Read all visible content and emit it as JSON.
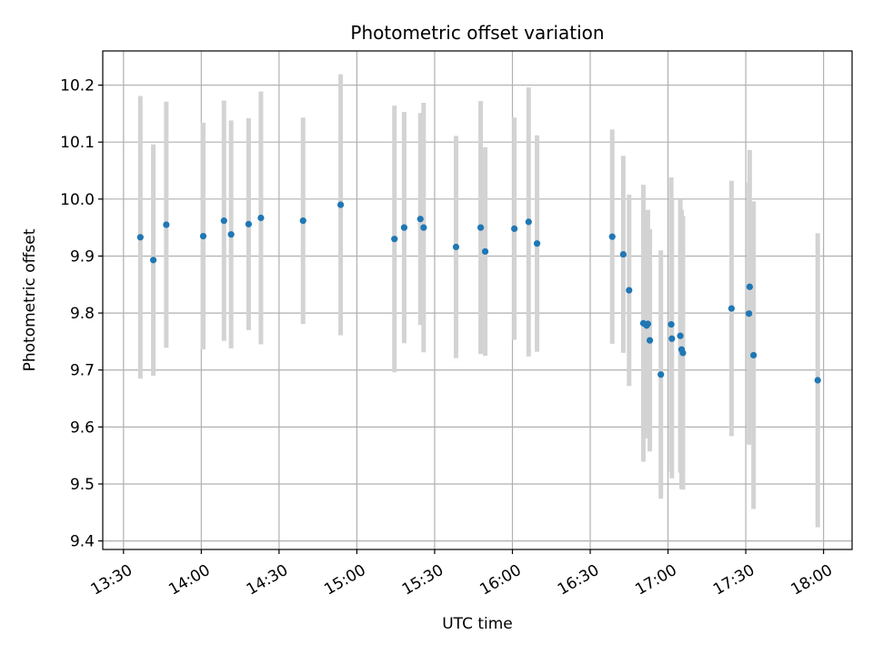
{
  "chart_data": {
    "type": "scatter",
    "title": "Photometric offset variation",
    "xlabel": "UTC time",
    "ylabel": "Photometric offset",
    "x_axis_kind": "time",
    "xlim": [
      "13:22",
      "18:11"
    ],
    "ylim": [
      9.385,
      10.26
    ],
    "grid": true,
    "marker_color": "#1f77b4",
    "errorbar_color": "#d3d3d3",
    "x_ticks": [
      {
        "value": "13:30",
        "label": "13:30"
      },
      {
        "value": "14:00",
        "label": "14:00"
      },
      {
        "value": "14:30",
        "label": "14:30"
      },
      {
        "value": "15:00",
        "label": "15:00"
      },
      {
        "value": "15:30",
        "label": "15:30"
      },
      {
        "value": "16:00",
        "label": "16:00"
      },
      {
        "value": "16:30",
        "label": "16:30"
      },
      {
        "value": "17:00",
        "label": "17:00"
      },
      {
        "value": "17:30",
        "label": "17:30"
      },
      {
        "value": "18:00",
        "label": "18:00"
      }
    ],
    "y_ticks": [
      {
        "value": 9.4,
        "label": "9.4"
      },
      {
        "value": 9.5,
        "label": "9.5"
      },
      {
        "value": 9.6,
        "label": "9.6"
      },
      {
        "value": 9.7,
        "label": "9.7"
      },
      {
        "value": 9.8,
        "label": "9.8"
      },
      {
        "value": 9.9,
        "label": "9.9"
      },
      {
        "value": 10.0,
        "label": "10.0"
      },
      {
        "value": 10.1,
        "label": "10.1"
      },
      {
        "value": 10.2,
        "label": "10.2"
      }
    ],
    "points": [
      {
        "x": "13:36:30",
        "y": 9.933,
        "err": 0.248
      },
      {
        "x": "13:41:30",
        "y": 9.893,
        "err": 0.203
      },
      {
        "x": "13:46:30",
        "y": 9.955,
        "err": 0.216
      },
      {
        "x": "14:00:45",
        "y": 9.935,
        "err": 0.199
      },
      {
        "x": "14:08:45",
        "y": 9.962,
        "err": 0.211
      },
      {
        "x": "14:11:30",
        "y": 9.938,
        "err": 0.2
      },
      {
        "x": "14:18:15",
        "y": 9.956,
        "err": 0.186
      },
      {
        "x": "14:23:00",
        "y": 9.967,
        "err": 0.222
      },
      {
        "x": "14:39:15",
        "y": 9.962,
        "err": 0.181
      },
      {
        "x": "14:53:45",
        "y": 9.99,
        "err": 0.229
      },
      {
        "x": "15:14:30",
        "y": 9.93,
        "err": 0.234
      },
      {
        "x": "15:18:15",
        "y": 9.95,
        "err": 0.203
      },
      {
        "x": "15:24:30",
        "y": 9.965,
        "err": 0.186
      },
      {
        "x": "15:25:45",
        "y": 9.95,
        "err": 0.219
      },
      {
        "x": "15:38:15",
        "y": 9.916,
        "err": 0.195
      },
      {
        "x": "15:47:45",
        "y": 9.95,
        "err": 0.222
      },
      {
        "x": "15:49:30",
        "y": 9.908,
        "err": 0.183
      },
      {
        "x": "16:00:45",
        "y": 9.948,
        "err": 0.195
      },
      {
        "x": "16:06:15",
        "y": 9.96,
        "err": 0.236
      },
      {
        "x": "16:09:30",
        "y": 9.922,
        "err": 0.19
      },
      {
        "x": "16:38:30",
        "y": 9.934,
        "err": 0.188
      },
      {
        "x": "16:42:45",
        "y": 9.903,
        "err": 0.173
      },
      {
        "x": "16:45:00",
        "y": 9.84,
        "err": 0.168
      },
      {
        "x": "16:50:30",
        "y": 9.782,
        "err": 0.243
      },
      {
        "x": "16:51:45",
        "y": 9.778,
        "err": 0.198
      },
      {
        "x": "16:52:15",
        "y": 9.781,
        "err": 0.2
      },
      {
        "x": "16:53:00",
        "y": 9.752,
        "err": 0.195
      },
      {
        "x": "16:57:15",
        "y": 9.692,
        "err": 0.218
      },
      {
        "x": "17:01:15",
        "y": 9.78,
        "err": 0.258
      },
      {
        "x": "17:01:30",
        "y": 9.755,
        "err": 0.245
      },
      {
        "x": "17:04:45",
        "y": 9.76,
        "err": 0.24
      },
      {
        "x": "17:05:15",
        "y": 9.736,
        "err": 0.245
      },
      {
        "x": "17:05:45",
        "y": 9.73,
        "err": 0.24
      },
      {
        "x": "17:24:30",
        "y": 9.808,
        "err": 0.224
      },
      {
        "x": "17:31:15",
        "y": 9.799,
        "err": 0.23
      },
      {
        "x": "17:31:30",
        "y": 9.846,
        "err": 0.24
      },
      {
        "x": "17:33:00",
        "y": 9.726,
        "err": 0.27
      },
      {
        "x": "17:57:45",
        "y": 9.682,
        "err": 0.258
      }
    ]
  }
}
